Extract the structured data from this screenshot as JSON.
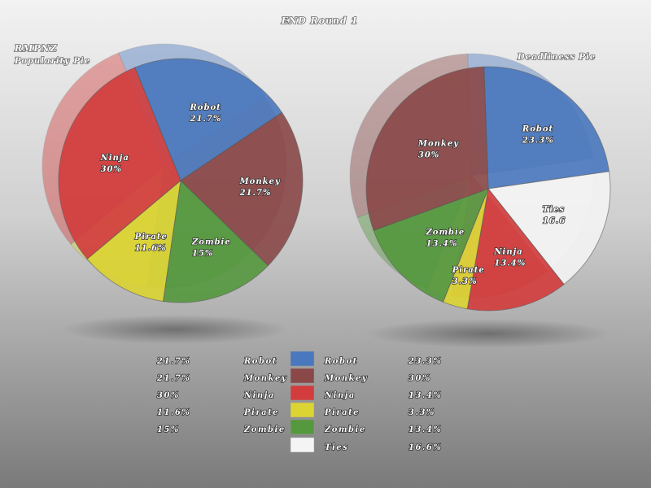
{
  "title": "END Round 1",
  "colors": {
    "Robot": "#4a78be",
    "Monkey": "#8a4848",
    "Ninja": "#d33c3c",
    "Pirate": "#dcd432",
    "Zombie": "#55983e",
    "Ties": "#f4f4f4"
  },
  "chart_data": [
    {
      "type": "pie",
      "title": "RMPNZ",
      "subtitle": "Popularity Pie",
      "slices": [
        {
          "label": "Robot",
          "value": 21.7,
          "display": "21.7%"
        },
        {
          "label": "Monkey",
          "value": 21.7,
          "display": "21.7%"
        },
        {
          "label": "Zombie",
          "value": 15,
          "display": "15%"
        },
        {
          "label": "Pirate",
          "value": 11.6,
          "display": "11.6%"
        },
        {
          "label": "Ninja",
          "value": 30,
          "display": "30%"
        }
      ]
    },
    {
      "type": "pie",
      "title": "Deadliness Pie",
      "slices": [
        {
          "label": "Robot",
          "value": 23.3,
          "display": "23.3%"
        },
        {
          "label": "Ties",
          "value": 16.6,
          "display": "16.6"
        },
        {
          "label": "Ninja",
          "value": 13.4,
          "display": "13.4%"
        },
        {
          "label": "Pirate",
          "value": 3.3,
          "display": "3.3%"
        },
        {
          "label": "Zombie",
          "value": 13.4,
          "display": "13.4%"
        },
        {
          "label": "Monkey",
          "value": 30,
          "display": "30%"
        }
      ]
    }
  ],
  "legend": {
    "left": [
      {
        "value": "21.7%",
        "label": "Robot"
      },
      {
        "value": "21.7%",
        "label": "Monkey"
      },
      {
        "value": "30%",
        "label": "Ninja"
      },
      {
        "value": "11.6%",
        "label": "Pirate"
      },
      {
        "value": "15%",
        "label": "Zombie"
      }
    ],
    "right": [
      {
        "key": "Robot",
        "label": "Robot",
        "value": "23.3%"
      },
      {
        "key": "Monkey",
        "label": "Monkey",
        "value": "30%"
      },
      {
        "key": "Ninja",
        "label": "Ninja",
        "value": "13.4%"
      },
      {
        "key": "Pirate",
        "label": "Pirate",
        "value": "3.3%"
      },
      {
        "key": "Zombie",
        "label": "Zombie",
        "value": "13.4%"
      },
      {
        "key": "Ties",
        "label": "Ties",
        "value": "16.6%"
      }
    ]
  }
}
